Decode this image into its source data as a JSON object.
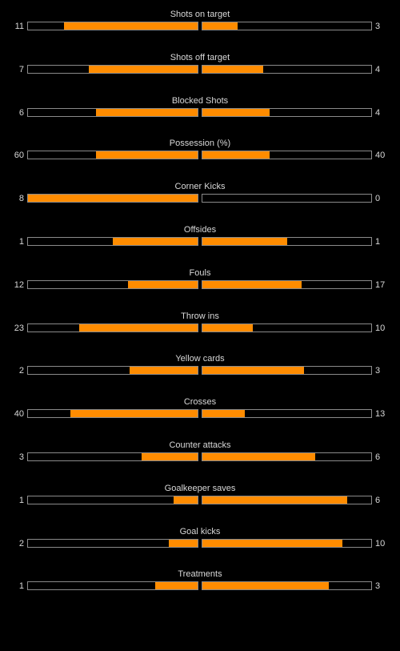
{
  "accent_color": "#ff8c00",
  "stats": [
    {
      "label": "Shots on target",
      "home": "11",
      "away": "3",
      "home_fill": 0.79,
      "away_fill": 0.21
    },
    {
      "label": "Shots off target",
      "home": "7",
      "away": "4",
      "home_fill": 0.64,
      "away_fill": 0.36
    },
    {
      "label": "Blocked Shots",
      "home": "6",
      "away": "4",
      "home_fill": 0.6,
      "away_fill": 0.4
    },
    {
      "label": "Possession (%)",
      "home": "60",
      "away": "40",
      "home_fill": 0.6,
      "away_fill": 0.4
    },
    {
      "label": "Corner Kicks",
      "home": "8",
      "away": "0",
      "home_fill": 1.0,
      "away_fill": 0.0
    },
    {
      "label": "Offsides",
      "home": "1",
      "away": "1",
      "home_fill": 0.5,
      "away_fill": 0.5
    },
    {
      "label": "Fouls",
      "home": "12",
      "away": "17",
      "home_fill": 0.41,
      "away_fill": 0.59
    },
    {
      "label": "Throw ins",
      "home": "23",
      "away": "10",
      "home_fill": 0.7,
      "away_fill": 0.3
    },
    {
      "label": "Yellow cards",
      "home": "2",
      "away": "3",
      "home_fill": 0.4,
      "away_fill": 0.6
    },
    {
      "label": "Crosses",
      "home": "40",
      "away": "13",
      "home_fill": 0.75,
      "away_fill": 0.25
    },
    {
      "label": "Counter attacks",
      "home": "3",
      "away": "6",
      "home_fill": 0.33,
      "away_fill": 0.67
    },
    {
      "label": "Goalkeeper saves",
      "home": "1",
      "away": "6",
      "home_fill": 0.14,
      "away_fill": 0.86
    },
    {
      "label": "Goal kicks",
      "home": "2",
      "away": "10",
      "home_fill": 0.17,
      "away_fill": 0.83
    },
    {
      "label": "Treatments",
      "home": "1",
      "away": "3",
      "home_fill": 0.25,
      "away_fill": 0.75
    }
  ]
}
